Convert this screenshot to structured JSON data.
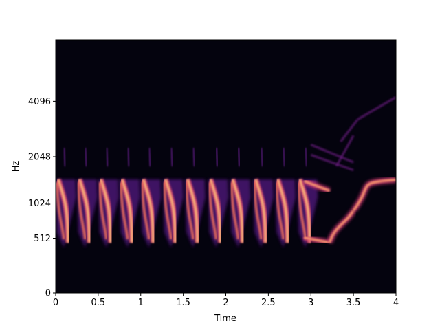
{
  "chart_data": {
    "type": "heatmap",
    "subtype": "mel-spectrogram",
    "title": "",
    "xlabel": "Time",
    "ylabel": "Hz",
    "x_range": [
      0,
      4
    ],
    "x_ticks": [
      {
        "value": 0,
        "label": "0"
      },
      {
        "value": 0.5,
        "label": "0.5"
      },
      {
        "value": 1,
        "label": "1"
      },
      {
        "value": 1.5,
        "label": "1.5"
      },
      {
        "value": 2,
        "label": "2"
      },
      {
        "value": 2.5,
        "label": "2.5"
      },
      {
        "value": 3,
        "label": "3"
      },
      {
        "value": 3.5,
        "label": "3.5"
      },
      {
        "value": 4,
        "label": "4"
      }
    ],
    "y_scale": "mel",
    "y_range_hz": [
      0,
      8192
    ],
    "y_ticks": [
      {
        "value": 0,
        "label": "0"
      },
      {
        "value": 512,
        "label": "512"
      },
      {
        "value": 1024,
        "label": "1024"
      },
      {
        "value": 2048,
        "label": "2048"
      },
      {
        "value": 4096,
        "label": "4096"
      }
    ],
    "colormap": "magma",
    "background_color": "#04030e",
    "grid": false,
    "legend": "none",
    "features": {
      "sweep_cycles": {
        "start_times": [
          0.0,
          0.25,
          0.5,
          0.75,
          1.0,
          1.26,
          1.52,
          1.79,
          2.05,
          2.32,
          2.58,
          2.84
        ],
        "duration": 0.25,
        "high_freq_hz": 1550,
        "low_freq_hz": 420,
        "upper_band_hz": [
          1900,
          2300
        ]
      },
      "glide_segments": [
        {
          "t0": 2.92,
          "f0": 520,
          "t1": 3.22,
          "f1": 460
        },
        {
          "t0": 2.92,
          "f0": 1450,
          "t1": 3.22,
          "f1": 1250
        },
        {
          "t0": 3.22,
          "f0": 460,
          "t1": 3.5,
          "f1": 900
        },
        {
          "t0": 3.5,
          "f0": 900,
          "t1": 4.0,
          "f1": 1480
        }
      ]
    }
  }
}
